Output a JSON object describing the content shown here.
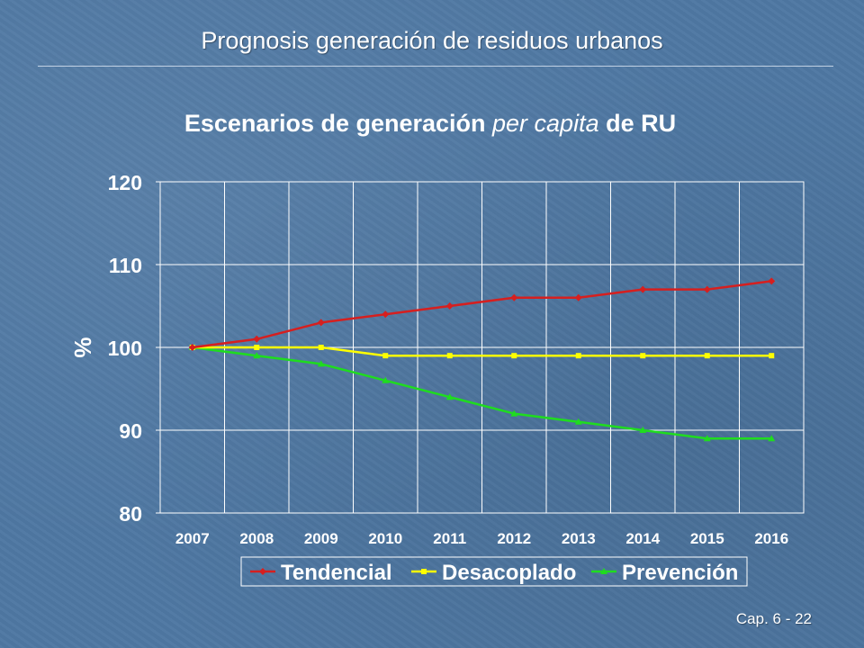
{
  "slide": {
    "title": "Prognosis generación de residuos urbanos",
    "footer": "Cap. 6 - 22"
  },
  "chart_data": {
    "type": "line",
    "title_parts": [
      {
        "text": "Escenarios de generación ",
        "italic": false
      },
      {
        "text": "per capita",
        "italic": true
      },
      {
        "text": " de RU",
        "italic": false
      }
    ],
    "ylabel": "%",
    "xlabel": "",
    "ylim": [
      80,
      120
    ],
    "yticks": [
      80,
      90,
      100,
      110,
      120
    ],
    "grid": true,
    "legend_position": "bottom",
    "categories": [
      "2007",
      "2008",
      "2009",
      "2010",
      "2011",
      "2012",
      "2013",
      "2014",
      "2015",
      "2016"
    ],
    "series": [
      {
        "name": "Tendencial",
        "color": "#d61f1f",
        "marker": "diamond",
        "values": [
          100,
          101,
          103,
          104,
          105,
          106,
          106,
          107,
          107,
          108
        ]
      },
      {
        "name": "Desacoplado",
        "color": "#ffff00",
        "marker": "square",
        "values": [
          100,
          100,
          100,
          99,
          99,
          99,
          99,
          99,
          99,
          99
        ]
      },
      {
        "name": "Prevención",
        "color": "#1fdc1f",
        "marker": "triangle",
        "values": [
          100,
          99,
          98,
          96,
          94,
          92,
          91,
          90,
          89,
          89
        ]
      }
    ]
  }
}
